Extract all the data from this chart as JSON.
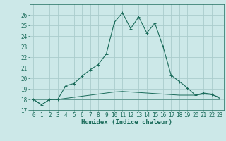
{
  "xlabel": "Humidex (Indice chaleur)",
  "x": [
    0,
    1,
    2,
    3,
    4,
    5,
    6,
    7,
    8,
    9,
    10,
    11,
    12,
    13,
    14,
    15,
    16,
    17,
    18,
    19,
    20,
    21,
    22,
    23
  ],
  "line1": [
    18,
    17.5,
    18,
    18,
    18,
    18,
    18,
    18,
    18,
    18,
    18,
    18,
    18,
    18,
    18,
    18,
    18,
    18,
    18,
    18,
    18,
    18,
    18,
    18
  ],
  "line2": [
    18,
    18,
    18,
    18,
    18.1,
    18.2,
    18.3,
    18.4,
    18.5,
    18.6,
    18.7,
    18.75,
    18.7,
    18.65,
    18.6,
    18.55,
    18.5,
    18.45,
    18.4,
    18.4,
    18.4,
    18.5,
    18.45,
    18.2
  ],
  "line3": [
    18,
    17.5,
    18,
    18,
    19.3,
    19.5,
    20.2,
    20.8,
    21.3,
    22.3,
    25.3,
    26.2,
    24.7,
    25.8,
    24.3,
    25.2,
    23.0,
    20.3,
    19.7,
    19.1,
    18.4,
    18.6,
    18.5,
    18.1
  ],
  "ylim": [
    17,
    27
  ],
  "yticks": [
    17,
    18,
    19,
    20,
    21,
    22,
    23,
    24,
    25,
    26
  ],
  "xlim": [
    -0.5,
    23.5
  ],
  "bg_color": "#cce8e8",
  "grid_color": "#aacccc",
  "line_color": "#1a6b5a",
  "xlabel_fontsize": 6.5,
  "tick_fontsize": 5.5
}
